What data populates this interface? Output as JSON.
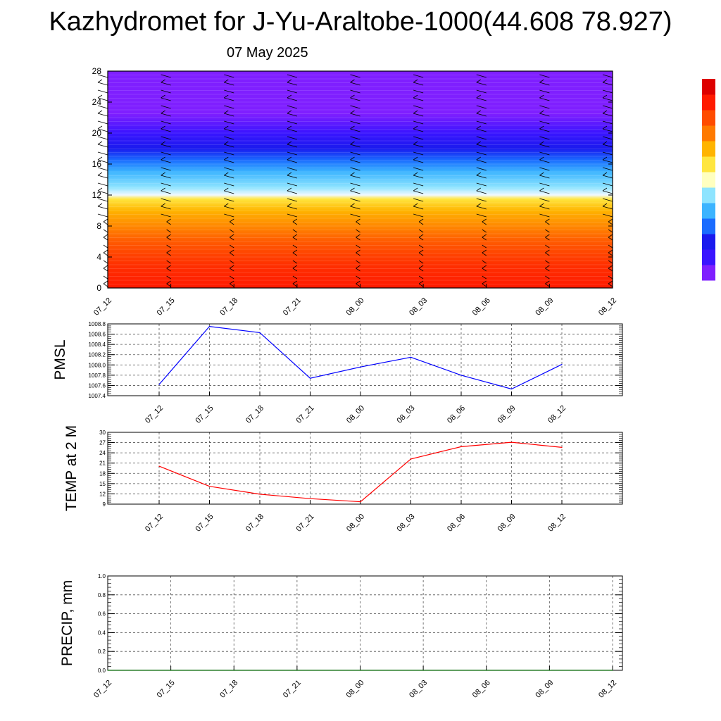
{
  "title": "Kazhydromet for J-Yu-Araltobe-1000(44.608 78.927)",
  "subtitle": "07 May 2025",
  "chart_data": [
    {
      "type": "heatmap",
      "name": "vertical-cross-section",
      "x_ticks": [
        "07_12",
        "07_15",
        "07_18",
        "07_21",
        "08_00",
        "08_03",
        "08_06",
        "08_09",
        "08_12"
      ],
      "y_ticks": [
        "0",
        "4",
        "8",
        "12",
        "16",
        "20",
        "24",
        "28"
      ],
      "ylim": [
        0,
        28
      ],
      "colorbar": [
        "#7f1fff",
        "#3a14ff",
        "#1a1aee",
        "#1a6cff",
        "#3cb4ff",
        "#8ee4ff",
        "#ffffc0",
        "#ffe640",
        "#ffb400",
        "#ff7a00",
        "#ff4c00",
        "#ff1a00",
        "#dd0000"
      ],
      "color_bands": [
        {
          "y": 0,
          "color": "#ff1a00"
        },
        {
          "y": 3,
          "color": "#ff3000"
        },
        {
          "y": 6,
          "color": "#ff5a00"
        },
        {
          "y": 8,
          "color": "#ff8800"
        },
        {
          "y": 10,
          "color": "#ffb400"
        },
        {
          "y": 11.5,
          "color": "#ffe640"
        },
        {
          "y": 12,
          "color": "#f0f8ff"
        },
        {
          "y": 13,
          "color": "#8ee4ff"
        },
        {
          "y": 15,
          "color": "#3cb4ff"
        },
        {
          "y": 16.5,
          "color": "#1a6cff"
        },
        {
          "y": 18,
          "color": "#1a1aee"
        },
        {
          "y": 20,
          "color": "#3a14ff"
        },
        {
          "y": 22.5,
          "color": "#7f1fff"
        },
        {
          "y": 28,
          "color": "#7f1fff"
        }
      ]
    },
    {
      "type": "line",
      "name": "pmsl",
      "ylabel": "PMSL",
      "x_ticks": [
        "07_12",
        "07_15",
        "07_18",
        "07_21",
        "08_00",
        "08_03",
        "08_06",
        "08_09",
        "08_12"
      ],
      "y_ticks": [
        "1007.4",
        "1007.6",
        "1007.8",
        "1008.0",
        "1008.2",
        "1008.4",
        "1008.6",
        "1008.8"
      ],
      "ylim": [
        1007.4,
        1008.8
      ],
      "values": [
        1007.62,
        1008.75,
        1008.63,
        1007.74,
        1007.96,
        1008.15,
        1007.8,
        1007.53,
        1008.01
      ],
      "color": "#0000ff",
      "grid": true
    },
    {
      "type": "line",
      "name": "temp",
      "ylabel": "TEMP at 2 M",
      "x_ticks": [
        "07_12",
        "07_15",
        "07_18",
        "07_21",
        "08_00",
        "08_03",
        "08_06",
        "08_09",
        "08_12"
      ],
      "y_ticks": [
        "9",
        "12",
        "15",
        "18",
        "21",
        "24",
        "27",
        "30"
      ],
      "ylim": [
        9,
        30
      ],
      "values": [
        20.1,
        14.2,
        11.9,
        10.6,
        9.7,
        22.2,
        25.8,
        27.1,
        25.6
      ],
      "color": "#ff0000",
      "grid": true
    },
    {
      "type": "line",
      "name": "precip",
      "ylabel": "PRECIP, mm",
      "x_ticks": [
        "07_12",
        "07_15",
        "07_18",
        "07_21",
        "08_00",
        "08_03",
        "08_06",
        "08_09",
        "08_12"
      ],
      "y_ticks": [
        "0.0",
        "0.2",
        "0.4",
        "0.6",
        "0.8",
        "1.0"
      ],
      "ylim": [
        0,
        1
      ],
      "values": [
        0,
        0,
        0,
        0,
        0,
        0,
        0,
        0,
        0
      ],
      "color": "#006400",
      "grid": true
    }
  ]
}
